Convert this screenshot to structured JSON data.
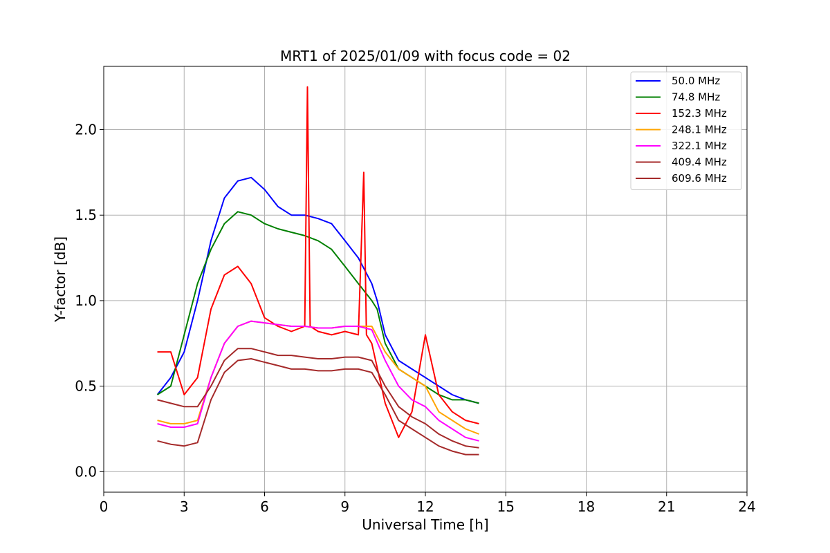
{
  "chart_data": {
    "type": "line",
    "title": "MRT1 of 2025/01/09 with focus code = 02",
    "xlabel": "Universal Time [h]",
    "ylabel": "Y-factor [dB]",
    "xlim": [
      0,
      24
    ],
    "ylim": [
      -0.12,
      2.37
    ],
    "xticks": [
      0,
      3,
      6,
      9,
      12,
      15,
      18,
      21,
      24
    ],
    "xtick_labels": [
      "0",
      "3",
      "6",
      "9",
      "12",
      "15",
      "18",
      "21",
      "24"
    ],
    "yticks": [
      0.0,
      0.5,
      1.0,
      1.5,
      2.0
    ],
    "ytick_labels": [
      "0.0",
      "0.5",
      "1.0",
      "1.5",
      "2.0"
    ],
    "grid": true,
    "legend_position": "top-right",
    "series": [
      {
        "name": " 50.0 MHz",
        "color": "#0000ff",
        "x": [
          2.0,
          2.5,
          3.0,
          3.5,
          4.0,
          4.5,
          5.0,
          5.5,
          6.0,
          6.5,
          7.0,
          7.5,
          8.0,
          8.5,
          9.0,
          9.5,
          10.0,
          10.2,
          10.5,
          11.0,
          11.5,
          12.0,
          12.5,
          13.0,
          13.5,
          14.0
        ],
        "y": [
          0.45,
          0.55,
          0.7,
          1.0,
          1.35,
          1.6,
          1.7,
          1.72,
          1.65,
          1.55,
          1.5,
          1.5,
          1.48,
          1.45,
          1.35,
          1.25,
          1.1,
          1.0,
          0.8,
          0.65,
          0.6,
          0.55,
          0.5,
          0.45,
          0.42,
          0.4
        ]
      },
      {
        "name": " 74.8 MHz",
        "color": "#008000",
        "x": [
          2.0,
          2.5,
          3.0,
          3.5,
          4.0,
          4.5,
          5.0,
          5.5,
          6.0,
          6.5,
          7.0,
          7.5,
          8.0,
          8.5,
          9.0,
          9.5,
          10.0,
          10.2,
          10.5,
          11.0,
          11.5,
          12.0,
          12.5,
          13.0,
          13.5,
          14.0
        ],
        "y": [
          0.45,
          0.5,
          0.8,
          1.1,
          1.3,
          1.45,
          1.52,
          1.5,
          1.45,
          1.42,
          1.4,
          1.38,
          1.35,
          1.3,
          1.2,
          1.1,
          1.0,
          0.95,
          0.75,
          0.6,
          0.55,
          0.5,
          0.45,
          0.42,
          0.42,
          0.4
        ]
      },
      {
        "name": "152.3 MHz",
        "color": "#ff0000",
        "x": [
          2.0,
          2.5,
          3.0,
          3.5,
          4.0,
          4.5,
          5.0,
          5.5,
          6.0,
          6.5,
          7.0,
          7.5,
          7.6,
          7.7,
          8.0,
          8.5,
          9.0,
          9.5,
          9.7,
          9.8,
          10.0,
          10.5,
          11.0,
          11.5,
          12.0,
          12.5,
          13.0,
          13.5,
          14.0
        ],
        "y": [
          0.7,
          0.7,
          0.45,
          0.55,
          0.95,
          1.15,
          1.2,
          1.1,
          0.9,
          0.85,
          0.82,
          0.85,
          2.25,
          0.85,
          0.82,
          0.8,
          0.82,
          0.8,
          1.75,
          0.8,
          0.75,
          0.4,
          0.2,
          0.35,
          0.8,
          0.45,
          0.35,
          0.3,
          0.28
        ]
      },
      {
        "name": "248.1 MHz",
        "color": "#ffa500",
        "x": [
          2.0,
          2.5,
          3.0,
          3.5,
          4.0,
          4.5,
          5.0,
          5.5,
          6.0,
          6.5,
          7.0,
          7.5,
          8.0,
          8.5,
          9.0,
          9.5,
          10.0,
          10.5,
          11.0,
          11.5,
          12.0,
          12.5,
          13.0,
          13.5,
          14.0
        ],
        "y": [
          0.3,
          0.28,
          0.28,
          0.3,
          0.55,
          0.75,
          0.85,
          0.88,
          0.87,
          0.86,
          0.85,
          0.85,
          0.84,
          0.84,
          0.85,
          0.85,
          0.85,
          0.7,
          0.6,
          0.55,
          0.5,
          0.35,
          0.3,
          0.25,
          0.22
        ]
      },
      {
        "name": "322.1 MHz",
        "color": "#ff00ff",
        "x": [
          2.0,
          2.5,
          3.0,
          3.5,
          4.0,
          4.5,
          5.0,
          5.5,
          6.0,
          6.5,
          7.0,
          7.5,
          8.0,
          8.5,
          9.0,
          9.5,
          10.0,
          10.5,
          11.0,
          11.5,
          12.0,
          12.5,
          13.0,
          13.5,
          14.0
        ],
        "y": [
          0.28,
          0.26,
          0.26,
          0.28,
          0.55,
          0.75,
          0.85,
          0.88,
          0.87,
          0.86,
          0.85,
          0.85,
          0.84,
          0.84,
          0.85,
          0.85,
          0.83,
          0.65,
          0.5,
          0.42,
          0.38,
          0.3,
          0.25,
          0.2,
          0.18
        ]
      },
      {
        "name": "409.4 MHz",
        "color": "#a52a2a",
        "x": [
          2.0,
          2.5,
          3.0,
          3.5,
          4.0,
          4.5,
          5.0,
          5.5,
          6.0,
          6.5,
          7.0,
          7.5,
          8.0,
          8.5,
          9.0,
          9.5,
          10.0,
          10.5,
          11.0,
          11.5,
          12.0,
          12.5,
          13.0,
          13.5,
          14.0
        ],
        "y": [
          0.42,
          0.4,
          0.38,
          0.38,
          0.5,
          0.65,
          0.72,
          0.72,
          0.7,
          0.68,
          0.68,
          0.67,
          0.66,
          0.66,
          0.67,
          0.67,
          0.65,
          0.5,
          0.38,
          0.32,
          0.28,
          0.22,
          0.18,
          0.15,
          0.14
        ]
      },
      {
        "name": "609.6 MHz",
        "color": "#a52a2a",
        "x": [
          2.0,
          2.5,
          3.0,
          3.5,
          4.0,
          4.5,
          5.0,
          5.5,
          6.0,
          6.5,
          7.0,
          7.5,
          8.0,
          8.5,
          9.0,
          9.5,
          10.0,
          10.5,
          11.0,
          11.5,
          12.0,
          12.5,
          13.0,
          13.5,
          14.0
        ],
        "y": [
          0.18,
          0.16,
          0.15,
          0.17,
          0.42,
          0.58,
          0.65,
          0.66,
          0.64,
          0.62,
          0.6,
          0.6,
          0.59,
          0.59,
          0.6,
          0.6,
          0.58,
          0.45,
          0.3,
          0.25,
          0.2,
          0.15,
          0.12,
          0.1,
          0.1
        ]
      }
    ]
  }
}
